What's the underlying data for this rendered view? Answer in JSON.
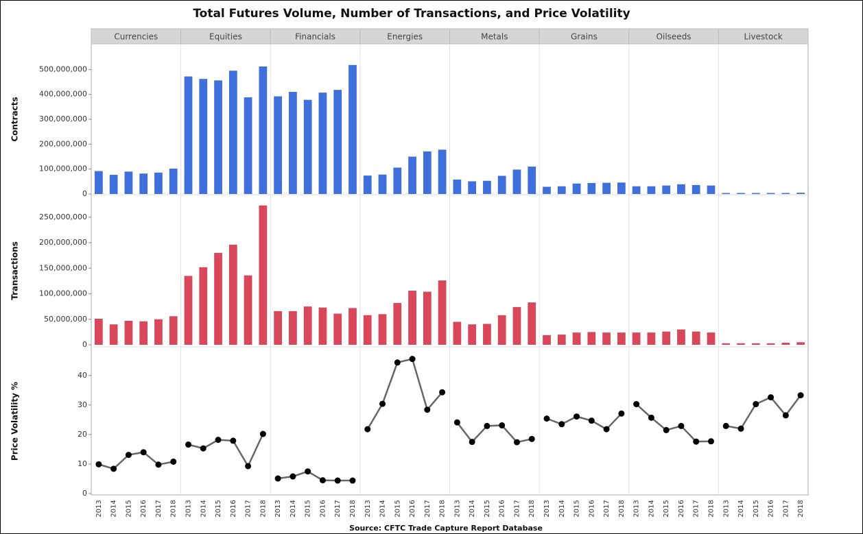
{
  "chart_data": {
    "title": "Total Futures Volume, Number of Transactions, and Price Volatility",
    "source": "Source: CFTC Trade Capture Report Database",
    "facets": [
      "Currencies",
      "Equities",
      "Financials",
      "Energies",
      "Metals",
      "Grains",
      "Oilseeds",
      "Livestock"
    ],
    "categories": [
      "2013",
      "2014",
      "2015",
      "2016",
      "2017",
      "2018"
    ],
    "rows": [
      {
        "type": "bar",
        "ylabel": "Contracts",
        "color": "#3f6fdb",
        "ylim": [
          0,
          600000000
        ],
        "yticks": [
          0,
          {
            "value": 100000000,
            "label": "100,000,000"
          },
          {
            "value": 200000000,
            "label": "200,000,000"
          },
          {
            "value": 300000000,
            "label": "300,000,000"
          },
          {
            "value": 400000000,
            "label": "400,000,000"
          },
          {
            "value": 500000000,
            "label": "500,000,000"
          }
        ],
        "values": [
          [
            92000000,
            77000000,
            90000000,
            82000000,
            86000000,
            102000000
          ],
          [
            472000000,
            462000000,
            456000000,
            495000000,
            388000000,
            512000000
          ],
          [
            392000000,
            410000000,
            378000000,
            407000000,
            418000000,
            518000000
          ],
          [
            74000000,
            78000000,
            106000000,
            150000000,
            171000000,
            178000000
          ],
          [
            58000000,
            51000000,
            53000000,
            73000000,
            98000000,
            110000000
          ],
          [
            29000000,
            31000000,
            42000000,
            44000000,
            45000000,
            46000000
          ],
          [
            31000000,
            31000000,
            34000000,
            39000000,
            36000000,
            34000000
          ],
          [
            4000000,
            4000000,
            4000000,
            4000000,
            4000000,
            5000000
          ]
        ]
      },
      {
        "type": "bar",
        "ylabel": "Transactions",
        "color": "#d9475a",
        "ylim": [
          0,
          290000000
        ],
        "yticks": [
          0,
          {
            "value": 50000000,
            "label": "50,000,000"
          },
          {
            "value": 100000000,
            "label": "100,000,000"
          },
          {
            "value": 150000000,
            "label": "150,000,000"
          },
          {
            "value": 200000000,
            "label": "200,000,000"
          },
          {
            "value": 250000000,
            "label": "250,000,000"
          }
        ],
        "values": [
          [
            51000000,
            40000000,
            47000000,
            46000000,
            50000000,
            56000000
          ],
          [
            135000000,
            152000000,
            180000000,
            196000000,
            136000000,
            273000000
          ],
          [
            66000000,
            66000000,
            75000000,
            73000000,
            61000000,
            72000000
          ],
          [
            58000000,
            60000000,
            82000000,
            106000000,
            104000000,
            126000000
          ],
          [
            45000000,
            40000000,
            41000000,
            58000000,
            74000000,
            83000000
          ],
          [
            19000000,
            20000000,
            24000000,
            25000000,
            24000000,
            24000000
          ],
          [
            24000000,
            24000000,
            26000000,
            30000000,
            26000000,
            24000000
          ],
          [
            3000000,
            3000000,
            3000000,
            3000000,
            4000000,
            5000000
          ]
        ]
      },
      {
        "type": "line",
        "ylabel": "Price Volatility %",
        "color": "#666666",
        "marker_color": "#000000",
        "ylim": [
          0,
          49
        ],
        "yticks": [
          0,
          10,
          20,
          30,
          40
        ],
        "values": [
          [
            9.9,
            8.4,
            13.1,
            14.0,
            9.8,
            10.8
          ],
          [
            16.6,
            15.3,
            18.2,
            17.9,
            9.3,
            20.2
          ],
          [
            5.1,
            5.8,
            7.5,
            4.5,
            4.4,
            4.4
          ],
          [
            21.8,
            30.4,
            44.4,
            45.6,
            28.4,
            34.3
          ],
          [
            24.1,
            17.5,
            22.9,
            23.1,
            17.4,
            18.5
          ],
          [
            25.4,
            23.5,
            26.1,
            24.7,
            21.8,
            27.1
          ],
          [
            30.3,
            25.7,
            21.5,
            22.9,
            17.6,
            17.7
          ],
          [
            22.9,
            22.0,
            30.3,
            32.6,
            26.5,
            33.3
          ]
        ]
      }
    ]
  }
}
